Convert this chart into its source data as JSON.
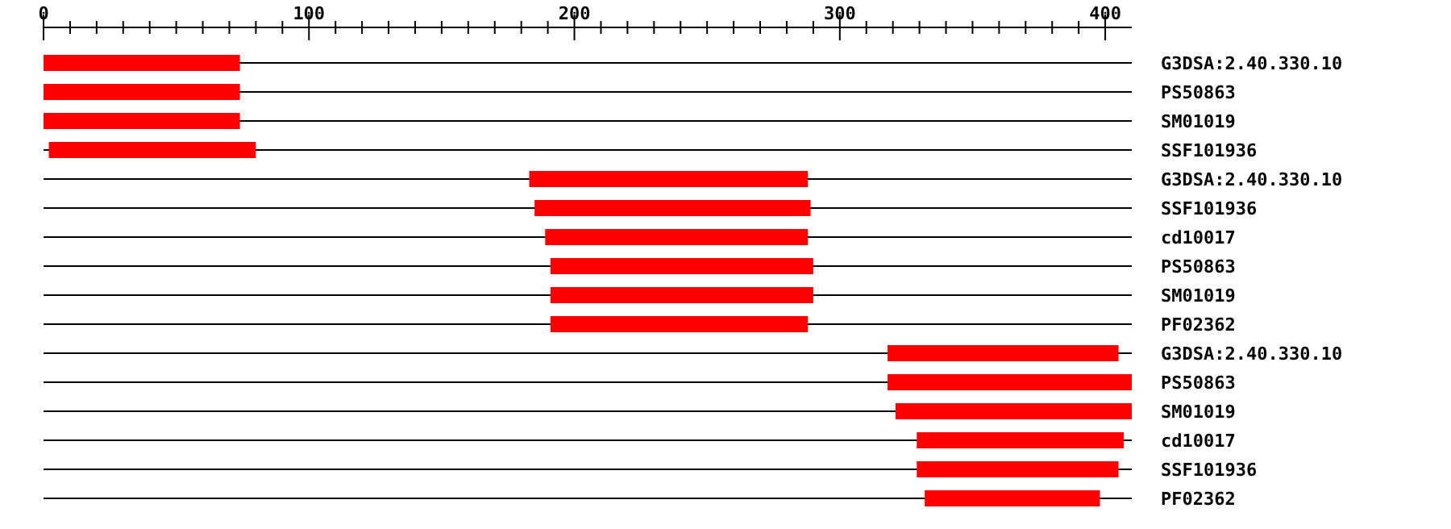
{
  "chart_data": {
    "type": "bar",
    "orientation": "horizontal",
    "categories": [
      "G3DSA:2.40.330.10",
      "PS50863",
      "SM01019",
      "SSF101936",
      "G3DSA:2.40.330.10",
      "SSF101936",
      "cd10017",
      "PS50863",
      "SM01019",
      "PF02362",
      "G3DSA:2.40.330.10",
      "PS50863",
      "SM01019",
      "cd10017",
      "SSF101936",
      "PF02362"
    ],
    "base": [
      0,
      0,
      0,
      2,
      183,
      185,
      189,
      191,
      191,
      191,
      318,
      318,
      321,
      329,
      329,
      332
    ],
    "values": [
      74,
      74,
      74,
      78,
      105,
      104,
      99,
      99,
      99,
      97,
      87,
      92,
      89,
      78,
      76,
      66
    ],
    "color": "#ff0000",
    "xlim": [
      0,
      410
    ],
    "xticks": [
      0,
      {
        "value": 10,
        "label": null
      },
      {
        "value": 20,
        "label": null
      },
      {
        "value": 30,
        "label": null
      },
      {
        "value": 40,
        "label": null
      },
      {
        "value": 50,
        "label": null
      },
      {
        "value": 60,
        "label": null
      },
      {
        "value": 70,
        "label": null
      },
      {
        "value": 80,
        "label": null
      },
      {
        "value": 90,
        "label": null
      },
      100,
      {
        "value": 110,
        "label": null
      },
      {
        "value": 120,
        "label": null
      },
      {
        "value": 130,
        "label": null
      },
      {
        "value": 140,
        "label": null
      },
      {
        "value": 150,
        "label": null
      },
      {
        "value": 160,
        "label": null
      },
      {
        "value": 170,
        "label": null
      },
      {
        "value": 180,
        "label": null
      },
      {
        "value": 190,
        "label": null
      },
      200,
      {
        "value": 210,
        "label": null
      },
      {
        "value": 220,
        "label": null
      },
      {
        "value": 230,
        "label": null
      },
      {
        "value": 240,
        "label": null
      },
      {
        "value": 250,
        "label": null
      },
      {
        "value": 260,
        "label": null
      },
      {
        "value": 270,
        "label": null
      },
      {
        "value": 280,
        "label": null
      },
      {
        "value": 290,
        "label": null
      },
      300,
      {
        "value": 310,
        "label": null
      },
      {
        "value": 320,
        "label": null
      },
      {
        "value": 330,
        "label": null
      },
      {
        "value": 340,
        "label": null
      },
      {
        "value": 350,
        "label": null
      },
      {
        "value": 360,
        "label": null
      },
      {
        "value": 370,
        "label": null
      },
      {
        "value": 380,
        "label": null
      },
      {
        "value": 390,
        "label": null
      },
      400
    ],
    "grid": "y"
  }
}
